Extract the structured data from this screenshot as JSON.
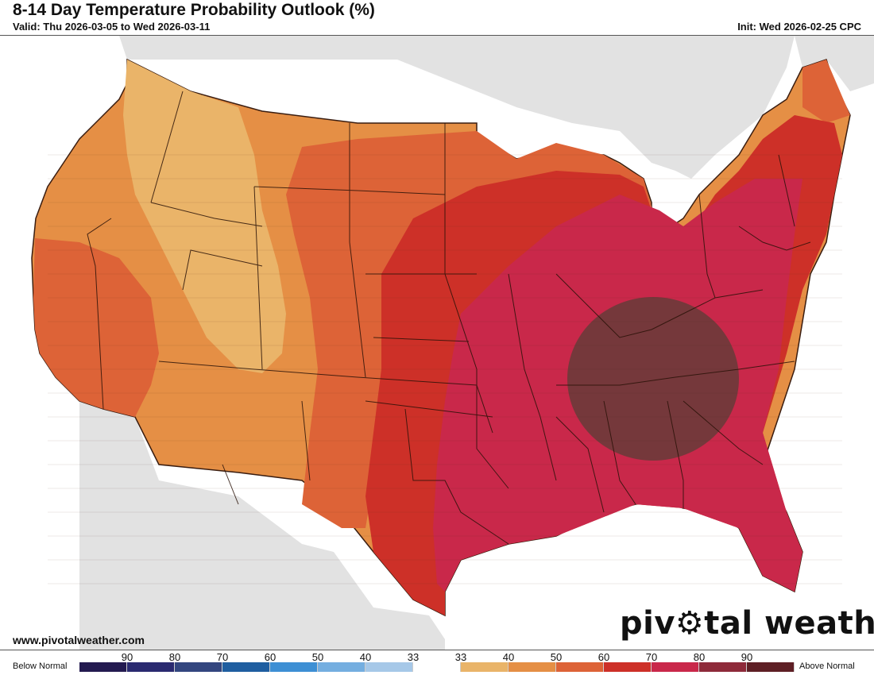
{
  "header": {
    "title": "8-14 Day Temperature Probability Outlook (%)",
    "valid": "Valid: Thu 2026-03-05 to Wed 2026-03-11",
    "init": "Init: Wed 2026-02-25 CPC"
  },
  "footer": {
    "url": "www.pivotalweather.com",
    "brand_part1": "piv",
    "brand_part2": "tal weather"
  },
  "legend": {
    "left_label": "Below Normal",
    "right_label": "Above Normal",
    "ticks": [
      "90",
      "80",
      "70",
      "60",
      "50",
      "40",
      "33",
      "33",
      "40",
      "50",
      "60",
      "70",
      "80",
      "90"
    ],
    "colors": [
      "#231a50",
      "#2a2a70",
      "#33467f",
      "#1f5ea0",
      "#3d8fd4",
      "#74aee0",
      "#a6c8e8",
      "#ffffff",
      "#e9b469",
      "#e58f45",
      "#dd6337",
      "#cd3028",
      "#c9284a",
      "#8e2a3a",
      "#5e1f25"
    ]
  },
  "map": {
    "land_color": "#e2e2e2",
    "water_color": "#ffffff",
    "zones": [
      {
        "category": "40",
        "color": "#eab469"
      },
      {
        "category": "50",
        "color": "#e58f45"
      },
      {
        "category": "60",
        "color": "#dd6337"
      },
      {
        "category": "70",
        "color": "#cd3028"
      },
      {
        "category": "80",
        "color": "#c9284a"
      },
      {
        "category": "90",
        "color": "#6b3a3a"
      }
    ]
  }
}
